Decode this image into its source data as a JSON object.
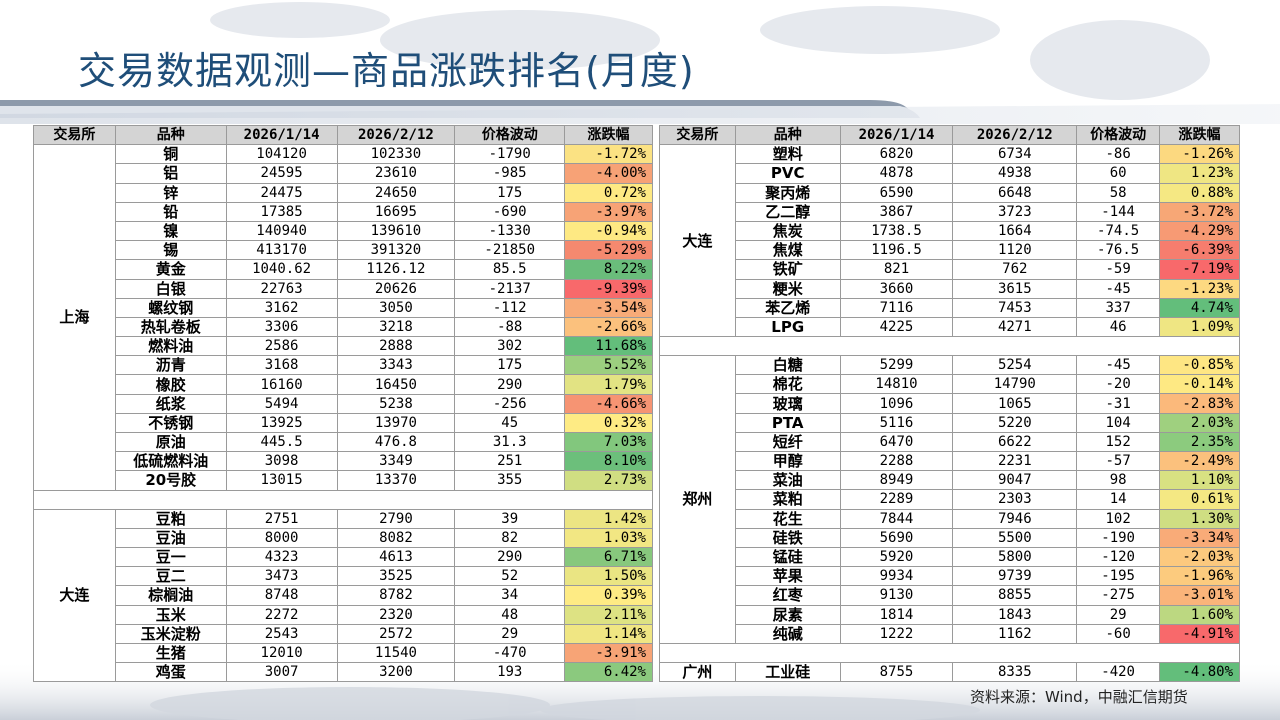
{
  "title": "交易数据观测—商品涨跌排名(月度)",
  "source": "资料来源：Wind，中融汇信期货",
  "headers": [
    "交易所",
    "品种",
    "2026/1/14",
    "2026/2/12",
    "价格波动",
    "涨跌幅"
  ],
  "left_groups": [
    {
      "exchange": "上海",
      "rows": [
        {
          "name": "铜",
          "p1": "104120",
          "p2": "102330",
          "chg": "-1790",
          "pct": "-1.72%",
          "color": "#fbe283"
        },
        {
          "name": "铝",
          "p1": "24595",
          "p2": "23610",
          "chg": "-985",
          "pct": "-4.00%",
          "color": "#f7a276"
        },
        {
          "name": "锌",
          "p1": "24475",
          "p2": "24650",
          "chg": "175",
          "pct": "0.72%",
          "color": "#fee983"
        },
        {
          "name": "铅",
          "p1": "17385",
          "p2": "16695",
          "chg": "-690",
          "pct": "-3.97%",
          "color": "#f7a376"
        },
        {
          "name": "镍",
          "p1": "140940",
          "p2": "139610",
          "chg": "-1330",
          "pct": "-0.94%",
          "color": "#fee983"
        },
        {
          "name": "锡",
          "p1": "413170",
          "p2": "391320",
          "chg": "-21850",
          "pct": "-5.29%",
          "color": "#f5896f"
        },
        {
          "name": "黄金",
          "p1": "1040.62",
          "p2": "1126.12",
          "chg": "85.5",
          "pct": "8.22%",
          "color": "#6abd7b"
        },
        {
          "name": "白银",
          "p1": "22763",
          "p2": "20626",
          "chg": "-2137",
          "pct": "-9.39%",
          "color": "#f8696b"
        },
        {
          "name": "螺纹钢",
          "p1": "3162",
          "p2": "3050",
          "chg": "-112",
          "pct": "-3.54%",
          "color": "#f8ab78"
        },
        {
          "name": "热轧卷板",
          "p1": "3306",
          "p2": "3218",
          "chg": "-88",
          "pct": "-2.66%",
          "color": "#fbc17d"
        },
        {
          "name": "燃料油",
          "p1": "2586",
          "p2": "2888",
          "chg": "302",
          "pct": "11.68%",
          "color": "#63be7b"
        },
        {
          "name": "沥青",
          "p1": "3168",
          "p2": "3343",
          "chg": "175",
          "pct": "5.52%",
          "color": "#9ccf7f"
        },
        {
          "name": "橡胶",
          "p1": "16160",
          "p2": "16450",
          "chg": "290",
          "pct": "1.79%",
          "color": "#e2e383"
        },
        {
          "name": "纸浆",
          "p1": "5494",
          "p2": "5238",
          "chg": "-256",
          "pct": "-4.66%",
          "color": "#f69473"
        },
        {
          "name": "不锈钢",
          "p1": "13925",
          "p2": "13970",
          "chg": "45",
          "pct": "0.32%",
          "color": "#feeb84"
        },
        {
          "name": "原油",
          "p1": "445.5",
          "p2": "476.8",
          "chg": "31.3",
          "pct": "7.03%",
          "color": "#82c77d"
        },
        {
          "name": "低硫燃料油",
          "p1": "3098",
          "p2": "3349",
          "chg": "251",
          "pct": "8.10%",
          "color": "#6cbf7b"
        },
        {
          "name": "20号胶",
          "p1": "13015",
          "p2": "13370",
          "chg": "355",
          "pct": "2.73%",
          "color": "#d0de82"
        }
      ]
    },
    {
      "exchange": "大连",
      "rows": [
        {
          "name": "豆粕",
          "p1": "2751",
          "p2": "2790",
          "chg": "39",
          "pct": "1.42%",
          "color": "#ece583"
        },
        {
          "name": "豆油",
          "p1": "8000",
          "p2": "8082",
          "chg": "82",
          "pct": "1.03%",
          "color": "#f2e783"
        },
        {
          "name": "豆一",
          "p1": "4323",
          "p2": "4613",
          "chg": "290",
          "pct": "6.71%",
          "color": "#87c87d"
        },
        {
          "name": "豆二",
          "p1": "3473",
          "p2": "3525",
          "chg": "52",
          "pct": "1.50%",
          "color": "#eae583"
        },
        {
          "name": "棕榈油",
          "p1": "8748",
          "p2": "8782",
          "chg": "34",
          "pct": "0.39%",
          "color": "#feeb84"
        },
        {
          "name": "玉米",
          "p1": "2272",
          "p2": "2320",
          "chg": "48",
          "pct": "2.11%",
          "color": "#dde283"
        },
        {
          "name": "玉米淀粉",
          "p1": "2543",
          "p2": "2572",
          "chg": "29",
          "pct": "1.14%",
          "color": "#f0e683"
        },
        {
          "name": "生猪",
          "p1": "12010",
          "p2": "11540",
          "chg": "-470",
          "pct": "-3.91%",
          "color": "#f7a476"
        },
        {
          "name": "鸡蛋",
          "p1": "3007",
          "p2": "3200",
          "chg": "193",
          "pct": "6.42%",
          "color": "#8bc97e"
        }
      ]
    }
  ],
  "right_groups": [
    {
      "exchange": "大连",
      "rows": [
        {
          "name": "塑料",
          "p1": "6820",
          "p2": "6734",
          "chg": "-86",
          "pct": "-1.26%",
          "color": "#fcd980"
        },
        {
          "name": "PVC",
          "p1": "4878",
          "p2": "4938",
          "chg": "60",
          "pct": "1.23%",
          "color": "#efe683"
        },
        {
          "name": "聚丙烯",
          "p1": "6590",
          "p2": "6648",
          "chg": "58",
          "pct": "0.88%",
          "color": "#f5e883"
        },
        {
          "name": "乙二醇",
          "p1": "3867",
          "p2": "3723",
          "chg": "-144",
          "pct": "-3.72%",
          "color": "#f7a776"
        },
        {
          "name": "焦炭",
          "p1": "1738.5",
          "p2": "1664",
          "chg": "-74.5",
          "pct": "-4.29%",
          "color": "#f79a74"
        },
        {
          "name": "焦煤",
          "p1": "1196.5",
          "p2": "1120",
          "chg": "-76.5",
          "pct": "-6.39%",
          "color": "#f67d6e"
        },
        {
          "name": "铁矿",
          "p1": "821",
          "p2": "762",
          "chg": "-59",
          "pct": "-7.19%",
          "color": "#f8696b"
        },
        {
          "name": "粳米",
          "p1": "3660",
          "p2": "3615",
          "chg": "-45",
          "pct": "-1.23%",
          "color": "#fdd981"
        },
        {
          "name": "苯乙烯",
          "p1": "7116",
          "p2": "7453",
          "chg": "337",
          "pct": "4.74%",
          "color": "#63be7b"
        },
        {
          "name": "LPG",
          "p1": "4225",
          "p2": "4271",
          "chg": "46",
          "pct": "1.09%",
          "color": "#efe683"
        }
      ]
    },
    {
      "exchange": "郑州",
      "rows": [
        {
          "name": "白糖",
          "p1": "5299",
          "p2": "5254",
          "chg": "-45",
          "pct": "-0.85%",
          "color": "#fee683"
        },
        {
          "name": "棉花",
          "p1": "14810",
          "p2": "14790",
          "chg": "-20",
          "pct": "-0.14%",
          "color": "#fee983"
        },
        {
          "name": "玻璃",
          "p1": "1096",
          "p2": "1065",
          "chg": "-31",
          "pct": "-2.83%",
          "color": "#fbb97b"
        },
        {
          "name": "PTA",
          "p1": "5116",
          "p2": "5220",
          "chg": "104",
          "pct": "2.03%",
          "color": "#9fd07f"
        },
        {
          "name": "短纤",
          "p1": "6470",
          "p2": "6622",
          "chg": "152",
          "pct": "2.35%",
          "color": "#8ccb7e"
        },
        {
          "name": "甲醇",
          "p1": "2288",
          "p2": "2231",
          "chg": "-57",
          "pct": "-2.49%",
          "color": "#fbc17d"
        },
        {
          "name": "菜油",
          "p1": "8949",
          "p2": "9047",
          "chg": "98",
          "pct": "1.10%",
          "color": "#d8e182"
        },
        {
          "name": "菜粕",
          "p1": "2289",
          "p2": "2303",
          "chg": "14",
          "pct": "0.61%",
          "color": "#f4e883"
        },
        {
          "name": "花生",
          "p1": "7844",
          "p2": "7946",
          "chg": "102",
          "pct": "1.30%",
          "color": "#cfde82"
        },
        {
          "name": "硅铁",
          "p1": "5690",
          "p2": "5500",
          "chg": "-190",
          "pct": "-3.34%",
          "color": "#f9ab78"
        },
        {
          "name": "锰硅",
          "p1": "5920",
          "p2": "5800",
          "chg": "-120",
          "pct": "-2.03%",
          "color": "#fcc97e"
        },
        {
          "name": "苹果",
          "p1": "9934",
          "p2": "9739",
          "chg": "-195",
          "pct": "-1.96%",
          "color": "#fccb7e"
        },
        {
          "name": "红枣",
          "p1": "9130",
          "p2": "8855",
          "chg": "-275",
          "pct": "-3.01%",
          "color": "#fab47a"
        },
        {
          "name": "尿素",
          "p1": "1814",
          "p2": "1843",
          "chg": "29",
          "pct": "1.60%",
          "color": "#bcd881"
        },
        {
          "name": "纯碱",
          "p1": "1222",
          "p2": "1162",
          "chg": "-60",
          "pct": "-4.91%",
          "color": "#f8696b"
        }
      ]
    },
    {
      "exchange": "广州",
      "rows": [
        {
          "name": "工业硅",
          "p1": "8755",
          "p2": "8335",
          "chg": "-420",
          "pct": "-4.80%",
          "color": "#63be7b"
        }
      ]
    }
  ]
}
